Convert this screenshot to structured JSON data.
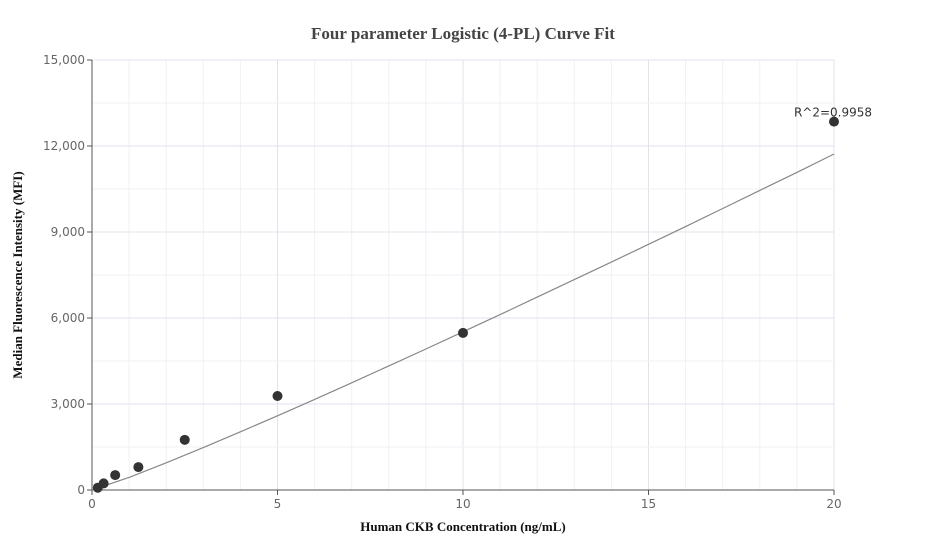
{
  "chart_data": {
    "type": "scatter",
    "title": "Four parameter Logistic (4-PL) Curve Fit",
    "xlabel": "Human CKB Concentration (ng/mL)",
    "ylabel": "Median Fluorescence Intensity (MFI)",
    "xlim": [
      0,
      20
    ],
    "ylim": [
      0,
      15000
    ],
    "x_ticks": [
      0,
      5,
      10,
      15,
      20
    ],
    "x_tick_labels": [
      "0",
      "5",
      "10",
      "15",
      "20"
    ],
    "y_ticks": [
      0,
      3000,
      6000,
      9000,
      12000,
      15000
    ],
    "y_tick_labels": [
      "0",
      "3,000",
      "6,000",
      "9,000",
      "12,000",
      "15,000"
    ],
    "grid": true,
    "series": [
      {
        "type": "scatter",
        "x": [
          0.156,
          0.313,
          0.625,
          1.25,
          2.5,
          5,
          10,
          20
        ],
        "y": [
          80,
          230,
          520,
          800,
          1750,
          3280,
          5480,
          12850
        ]
      },
      {
        "type": "line",
        "x": [
          0,
          1,
          2,
          3,
          4,
          5,
          6,
          7,
          8,
          9,
          10,
          11,
          12,
          13,
          14,
          15,
          16,
          17,
          18,
          19,
          20
        ],
        "y": [
          0,
          440,
          950,
          1480,
          2030,
          2590,
          3160,
          3740,
          4330,
          4920,
          5520,
          6120,
          6730,
          7340,
          7950,
          8570,
          9190,
          9820,
          10450,
          11080,
          11720
        ]
      }
    ],
    "annotation": {
      "text": "R^2=0.9958",
      "x": 20,
      "y": 12850
    },
    "colors": {
      "point": "#333333",
      "line": "#888888",
      "grid": "#e6e6f0",
      "axis": "#555555"
    }
  }
}
